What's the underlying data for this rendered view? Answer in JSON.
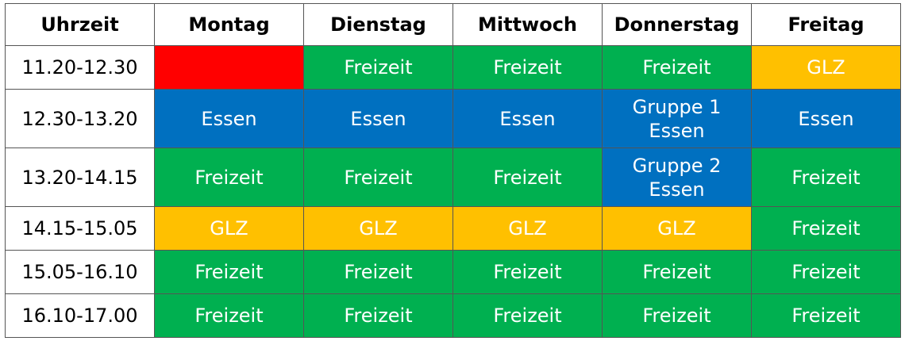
{
  "columns": [
    "Uhrzeit",
    "Montag",
    "Dienstag",
    "Mittwoch",
    "Donnerstag",
    "Freitag"
  ],
  "colors": {
    "red": "#ff0000",
    "green": "#00b050",
    "yellow": "#ffc000",
    "blue": "#0070c0"
  },
  "rows": [
    {
      "time": "11.20-12.30",
      "height": "short",
      "cells": [
        {
          "text": "",
          "color": "red"
        },
        {
          "text": "Freizeit",
          "color": "green"
        },
        {
          "text": "Freizeit",
          "color": "green"
        },
        {
          "text": "Freizeit",
          "color": "green"
        },
        {
          "text": "GLZ",
          "color": "yellow"
        }
      ]
    },
    {
      "time": "12.30-13.20",
      "height": "tall",
      "cells": [
        {
          "text": "Essen",
          "color": "blue"
        },
        {
          "text": "Essen",
          "color": "blue"
        },
        {
          "text": "Essen",
          "color": "blue"
        },
        {
          "text": "Gruppe 1\nEssen",
          "color": "blue"
        },
        {
          "text": "Essen",
          "color": "blue"
        }
      ]
    },
    {
      "time": "13.20-14.15",
      "height": "tall",
      "cells": [
        {
          "text": "Freizeit",
          "color": "green"
        },
        {
          "text": "Freizeit",
          "color": "green"
        },
        {
          "text": "Freizeit",
          "color": "green"
        },
        {
          "text": "Gruppe 2\nEssen",
          "color": "blue"
        },
        {
          "text": "Freizeit",
          "color": "green"
        }
      ]
    },
    {
      "time": "14.15-15.05",
      "height": "short",
      "cells": [
        {
          "text": "GLZ",
          "color": "yellow"
        },
        {
          "text": "GLZ",
          "color": "yellow"
        },
        {
          "text": "GLZ",
          "color": "yellow"
        },
        {
          "text": "GLZ",
          "color": "yellow"
        },
        {
          "text": "Freizeit",
          "color": "green"
        }
      ]
    },
    {
      "time": "15.05-16.10",
      "height": "short",
      "cells": [
        {
          "text": "Freizeit",
          "color": "green"
        },
        {
          "text": "Freizeit",
          "color": "green"
        },
        {
          "text": "Freizeit",
          "color": "green"
        },
        {
          "text": "Freizeit",
          "color": "green"
        },
        {
          "text": "Freizeit",
          "color": "green"
        }
      ]
    },
    {
      "time": "16.10-17.00",
      "height": "short",
      "cells": [
        {
          "text": "Freizeit",
          "color": "green"
        },
        {
          "text": "Freizeit",
          "color": "green"
        },
        {
          "text": "Freizeit",
          "color": "green"
        },
        {
          "text": "Freizeit",
          "color": "green"
        },
        {
          "text": "Freizeit",
          "color": "green"
        }
      ]
    }
  ]
}
